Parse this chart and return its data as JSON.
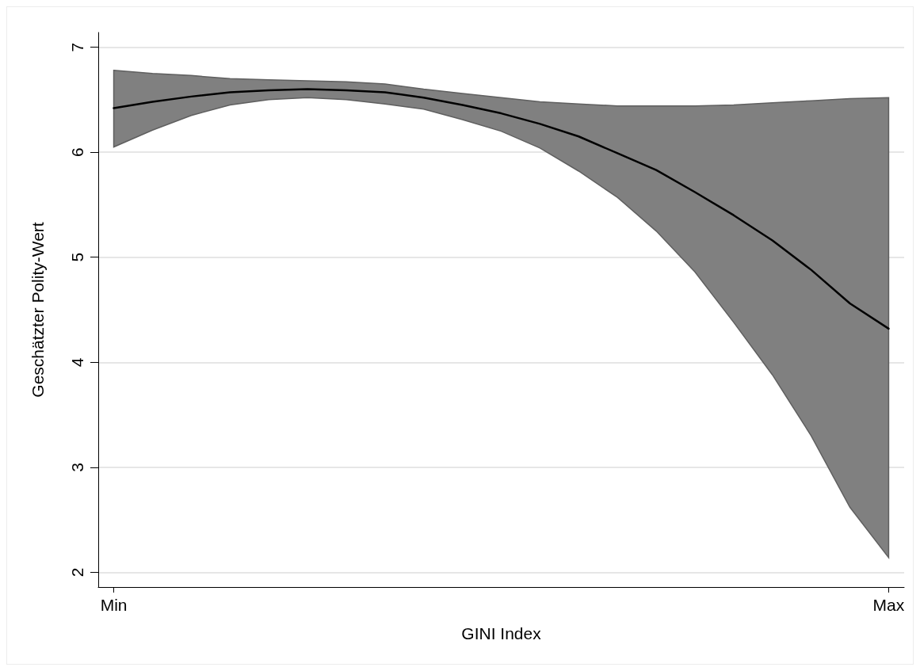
{
  "chart_data": {
    "type": "line",
    "xlabel": "GINI Index",
    "ylabel": "Geschätzter Polity-Wert",
    "categories": [
      "Min",
      null,
      null,
      null,
      null,
      null,
      null,
      null,
      null,
      null,
      null,
      null,
      null,
      null,
      null,
      null,
      null,
      null,
      null,
      null,
      "Max"
    ],
    "series": [
      {
        "color": "#000000",
        "values": [
          6.42,
          6.48,
          6.53,
          6.57,
          6.59,
          6.6,
          6.59,
          6.57,
          6.52,
          6.45,
          6.37,
          6.27,
          6.15,
          5.99,
          5.83,
          5.62,
          5.4,
          5.16,
          4.88,
          4.56,
          4.32
        ],
        "upper": [
          6.78,
          6.75,
          6.73,
          6.7,
          6.69,
          6.68,
          6.67,
          6.65,
          6.6,
          6.56,
          6.52,
          6.48,
          6.46,
          6.44,
          6.44,
          6.44,
          6.45,
          6.47,
          6.49,
          6.51,
          6.52
        ],
        "lower": [
          6.05,
          6.21,
          6.35,
          6.45,
          6.5,
          6.52,
          6.5,
          6.46,
          6.41,
          6.31,
          6.2,
          6.04,
          5.82,
          5.57,
          5.25,
          4.86,
          4.38,
          3.88,
          3.3,
          2.62,
          2.14
        ]
      }
    ],
    "ylim": [
      1.86,
      7.14
    ],
    "yticks": [
      2,
      3,
      4,
      5,
      6,
      7
    ],
    "grid": "y"
  }
}
